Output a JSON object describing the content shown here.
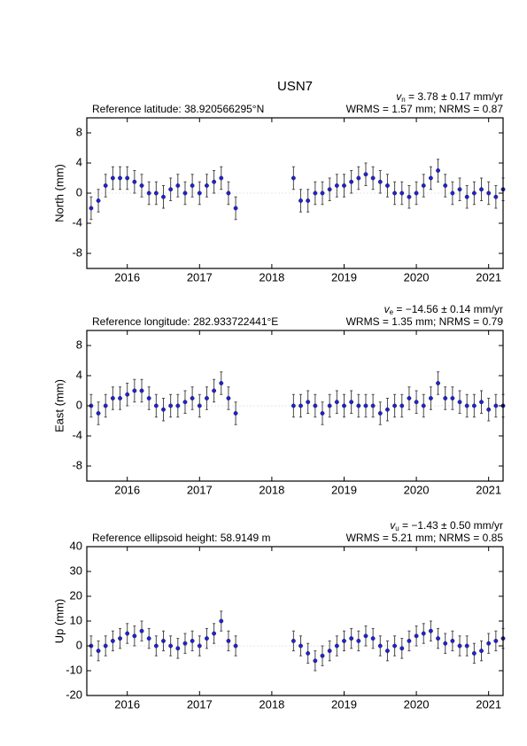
{
  "chart_data": [
    {
      "type": "errorbar",
      "title": "USN7",
      "velocity_symbol": "v",
      "velocity_subscript": "n",
      "velocity_text": " = 3.78 ± 0.17 mm/yr",
      "reference": "Reference latitude: 38.920566295°N",
      "stats": "WRMS = 1.57 mm; NRMS = 0.87",
      "y_label": "North (mm)",
      "xlim": [
        2015.44,
        2021.2
      ],
      "xticks": [
        2016,
        2017,
        2018,
        2019,
        2020,
        2021
      ],
      "ylim": [
        -10,
        10
      ],
      "yticks": [
        -8,
        -4,
        0,
        4,
        8
      ],
      "color": "#1f1fe0",
      "error_color": "#4a4a4a",
      "error": 1.5,
      "x": [
        2015.5,
        2015.6,
        2015.7,
        2015.8,
        2015.9,
        2016.0,
        2016.1,
        2016.2,
        2016.3,
        2016.4,
        2016.5,
        2016.6,
        2016.7,
        2016.8,
        2016.9,
        2017.0,
        2017.1,
        2017.2,
        2017.3,
        2017.4,
        2017.5,
        2018.3,
        2018.4,
        2018.5,
        2018.6,
        2018.7,
        2018.8,
        2018.9,
        2019.0,
        2019.1,
        2019.2,
        2019.3,
        2019.4,
        2019.5,
        2019.6,
        2019.7,
        2019.8,
        2019.9,
        2020.0,
        2020.1,
        2020.2,
        2020.3,
        2020.4,
        2020.5,
        2020.6,
        2020.7,
        2020.8,
        2020.9,
        2021.0,
        2021.1,
        2021.2
      ],
      "values": [
        -2,
        -1,
        1,
        2,
        2,
        2,
        1.5,
        1,
        0,
        0,
        -0.5,
        0.5,
        1,
        0,
        1,
        0,
        1,
        1.5,
        2,
        0,
        -2,
        2,
        -1,
        -1,
        0,
        0,
        0.5,
        1,
        1,
        1.5,
        2,
        2.5,
        2,
        1.5,
        1,
        0,
        0,
        -0.5,
        0,
        1,
        2,
        3,
        1,
        0,
        0.5,
        -0.5,
        0,
        0.5,
        0,
        -0.5,
        0.5
      ]
    },
    {
      "type": "errorbar",
      "velocity_symbol": "v",
      "velocity_subscript": "e",
      "velocity_text": " = −14.56 ± 0.14 mm/yr",
      "reference": "Reference longitude: 282.933722441°E",
      "stats": "WRMS = 1.35 mm; NRMS = 0.79",
      "y_label": "East (mm)",
      "xlim": [
        2015.44,
        2021.2
      ],
      "xticks": [
        2016,
        2017,
        2018,
        2019,
        2020,
        2021
      ],
      "ylim": [
        -10,
        10
      ],
      "yticks": [
        -8,
        -4,
        0,
        4,
        8
      ],
      "color": "#1f1fe0",
      "error_color": "#4a4a4a",
      "error": 1.5,
      "x": [
        2015.5,
        2015.6,
        2015.7,
        2015.8,
        2015.9,
        2016.0,
        2016.1,
        2016.2,
        2016.3,
        2016.4,
        2016.5,
        2016.6,
        2016.7,
        2016.8,
        2016.9,
        2017.0,
        2017.1,
        2017.2,
        2017.3,
        2017.4,
        2017.5,
        2018.3,
        2018.4,
        2018.5,
        2018.6,
        2018.7,
        2018.8,
        2018.9,
        2019.0,
        2019.1,
        2019.2,
        2019.3,
        2019.4,
        2019.5,
        2019.6,
        2019.7,
        2019.8,
        2019.9,
        2020.0,
        2020.1,
        2020.2,
        2020.3,
        2020.4,
        2020.5,
        2020.6,
        2020.7,
        2020.8,
        2020.9,
        2021.0,
        2021.1,
        2021.2
      ],
      "values": [
        0,
        -1,
        0,
        1,
        1,
        1.5,
        2,
        2,
        1,
        0,
        -0.5,
        0,
        0,
        0.5,
        1,
        0,
        1,
        2,
        3,
        1,
        -1,
        0,
        0,
        0.5,
        0,
        -1,
        0,
        0.5,
        0,
        0.5,
        0,
        0,
        0,
        -1,
        -0.5,
        0,
        0,
        1,
        0.5,
        0,
        1,
        3,
        1,
        1,
        0.5,
        0,
        0,
        0.5,
        -0.5,
        0,
        0
      ]
    },
    {
      "type": "errorbar",
      "velocity_symbol": "v",
      "velocity_subscript": "u",
      "velocity_text": " = −1.43 ± 0.50 mm/yr",
      "reference": "Reference ellipsoid height: 58.9149 m",
      "stats": "WRMS = 5.21 mm; NRMS = 0.85",
      "y_label": "Up (mm)",
      "xlim": [
        2015.44,
        2021.2
      ],
      "xticks": [
        2016,
        2017,
        2018,
        2019,
        2020,
        2021
      ],
      "ylim": [
        -20,
        40
      ],
      "yticks": [
        -20,
        -10,
        0,
        10,
        20,
        30,
        40
      ],
      "color": "#1f1fe0",
      "error_color": "#4a4a4a",
      "error": 4,
      "x": [
        2015.5,
        2015.6,
        2015.7,
        2015.8,
        2015.9,
        2016.0,
        2016.1,
        2016.2,
        2016.3,
        2016.4,
        2016.5,
        2016.6,
        2016.7,
        2016.8,
        2016.9,
        2017.0,
        2017.1,
        2017.2,
        2017.3,
        2017.4,
        2017.5,
        2018.3,
        2018.4,
        2018.5,
        2018.6,
        2018.7,
        2018.8,
        2018.9,
        2019.0,
        2019.1,
        2019.2,
        2019.3,
        2019.4,
        2019.5,
        2019.6,
        2019.7,
        2019.8,
        2019.9,
        2020.0,
        2020.1,
        2020.2,
        2020.3,
        2020.4,
        2020.5,
        2020.6,
        2020.7,
        2020.8,
        2020.9,
        2021.0,
        2021.1,
        2021.2
      ],
      "values": [
        0,
        -2,
        0,
        2,
        3,
        5,
        4,
        6,
        3,
        0,
        2,
        0,
        -1,
        1,
        2,
        0,
        3,
        5,
        10,
        2,
        0,
        2,
        0,
        -3,
        -6,
        -4,
        -2,
        0,
        2,
        3,
        2,
        4,
        3,
        0,
        -2,
        0,
        -1,
        2,
        4,
        5,
        6,
        3,
        1,
        2,
        0,
        0,
        -3,
        -2,
        1,
        2,
        3
      ]
    }
  ]
}
